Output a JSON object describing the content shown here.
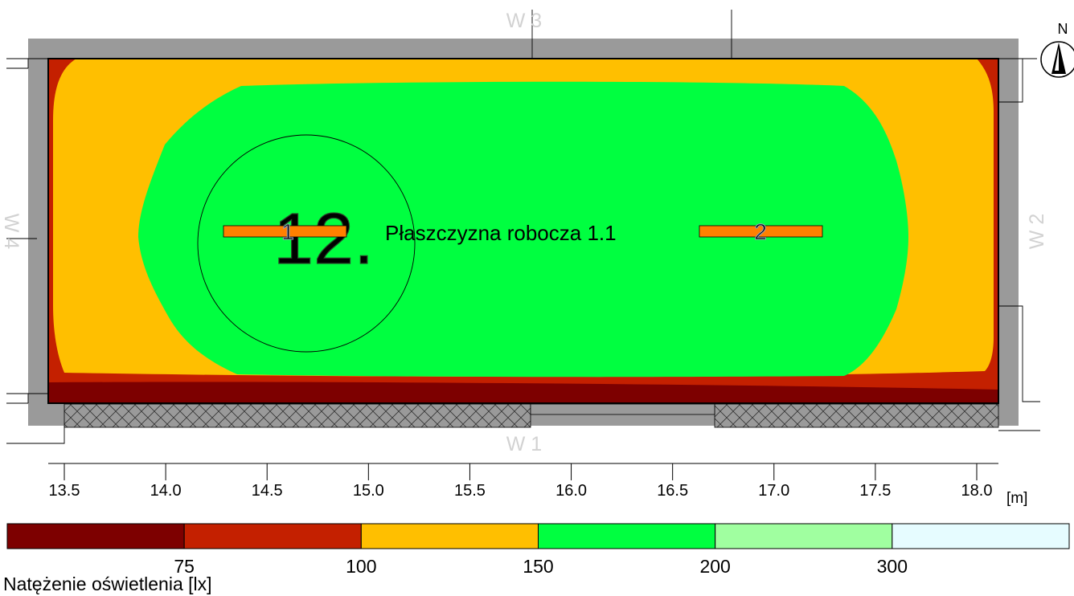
{
  "plane": {
    "label": "Płaszczyzna robocza 1.1",
    "room_number": "12."
  },
  "walls": {
    "top": "W 3",
    "bottom": "W 1",
    "left": "W 4",
    "right": "W 2"
  },
  "compass": {
    "label": "N"
  },
  "luminaires": [
    {
      "id": "1"
    },
    {
      "id": "2"
    }
  ],
  "x_axis": {
    "unit": "[m]",
    "ticks": [
      "13.5",
      "14.0",
      "14.5",
      "15.0",
      "15.5",
      "16.0",
      "16.5",
      "17.0",
      "17.5",
      "18.0"
    ]
  },
  "legend": {
    "title": "Natężenie oświetlenia [lx]",
    "thresholds": [
      "75",
      "100",
      "150",
      "200",
      "300"
    ],
    "colors": [
      "#7d0000",
      "#c42000",
      "#ffbf00",
      "#00ff40",
      "#a0ffa0",
      "#e6fcff"
    ]
  },
  "colors": {
    "wall": "#9a9a9a",
    "luminaire": "#ff8000",
    "dark_red": "#7d0000",
    "red": "#c42000",
    "orange": "#ffbf00",
    "green": "#00ff40"
  }
}
